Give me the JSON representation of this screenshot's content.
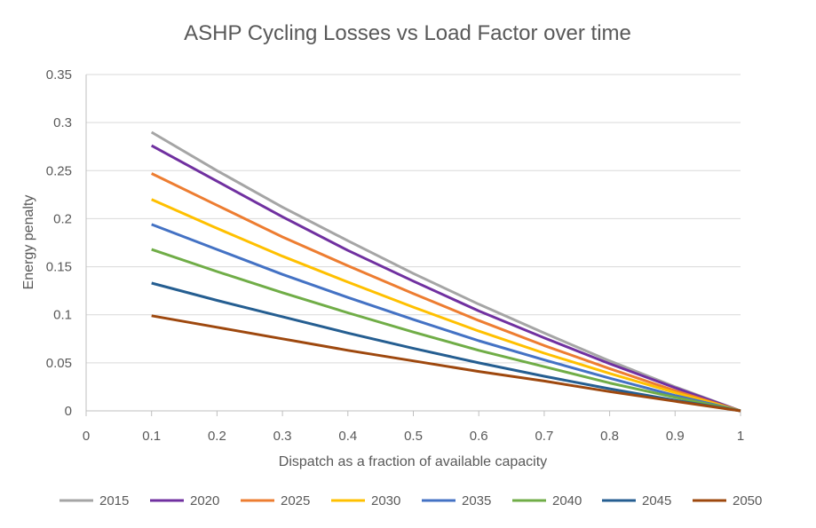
{
  "chart_data": {
    "type": "line",
    "title": "ASHP Cycling Losses vs Load Factor over time",
    "xlabel": "Dispatch as a fraction of available capacity",
    "ylabel": "Energy penalty",
    "xlim": [
      0,
      1
    ],
    "ylim": [
      0,
      0.35
    ],
    "xticks": [
      "0",
      "0.1",
      "0.2",
      "0.3",
      "0.4",
      "0.5",
      "0.6",
      "0.7",
      "0.8",
      "0.9",
      "1"
    ],
    "yticks": [
      "0",
      "0.05",
      "0.1",
      "0.15",
      "0.2",
      "0.25",
      "0.3",
      "0.35"
    ],
    "grid": "horizontal",
    "legend_position": "bottom",
    "x": [
      0.1,
      0.2,
      0.3,
      0.4,
      0.5,
      0.6,
      0.7,
      0.8,
      0.9,
      1.0
    ],
    "series": [
      {
        "name": "2015",
        "color": "#A5A5A5",
        "values": [
          0.29,
          0.25,
          0.212,
          0.177,
          0.143,
          0.111,
          0.081,
          0.052,
          0.025,
          0
        ]
      },
      {
        "name": "2020",
        "color": "#7030A0",
        "values": [
          0.276,
          0.239,
          0.202,
          0.167,
          0.135,
          0.104,
          0.076,
          0.049,
          0.024,
          0
        ]
      },
      {
        "name": "2025",
        "color": "#ED7D31",
        "values": [
          0.247,
          0.214,
          0.181,
          0.151,
          0.122,
          0.094,
          0.068,
          0.044,
          0.021,
          0
        ]
      },
      {
        "name": "2030",
        "color": "#FFC000",
        "values": [
          0.22,
          0.19,
          0.161,
          0.134,
          0.108,
          0.083,
          0.06,
          0.039,
          0.019,
          0
        ]
      },
      {
        "name": "2035",
        "color": "#4472C4",
        "values": [
          0.194,
          0.168,
          0.142,
          0.118,
          0.095,
          0.073,
          0.053,
          0.034,
          0.016,
          0
        ]
      },
      {
        "name": "2040",
        "color": "#70AD47",
        "values": [
          0.168,
          0.145,
          0.123,
          0.102,
          0.082,
          0.063,
          0.046,
          0.029,
          0.014,
          0
        ]
      },
      {
        "name": "2045",
        "color": "#255E91",
        "values": [
          0.133,
          0.115,
          0.098,
          0.081,
          0.065,
          0.05,
          0.036,
          0.023,
          0.011,
          0
        ]
      },
      {
        "name": "2050",
        "color": "#9E480E",
        "values": [
          0.099,
          0.087,
          0.075,
          0.063,
          0.052,
          0.041,
          0.031,
          0.02,
          0.01,
          0
        ]
      }
    ]
  }
}
